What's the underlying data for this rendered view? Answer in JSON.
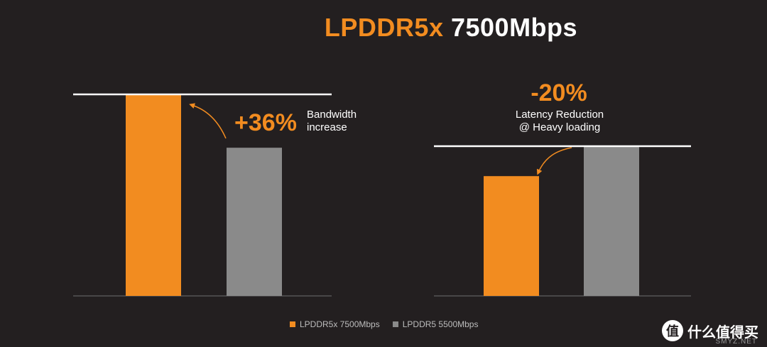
{
  "title": {
    "part1": "LPDDR5x",
    "part2": "7500Mbps"
  },
  "colors": {
    "orange": "#f28c20",
    "gray": "#8a8a8a",
    "line": "#ffffff",
    "axis": "#555555"
  },
  "chart_data": [
    {
      "type": "bar",
      "categories": [
        "LPDDR5x 7500Mbps",
        "LPDDR5 5500Mbps"
      ],
      "values": [
        136,
        100
      ],
      "ylim": [
        0,
        136
      ],
      "annotation": {
        "value": "+36%",
        "label_line1": "Bandwidth",
        "label_line2": "increase"
      }
    },
    {
      "type": "bar",
      "categories": [
        "LPDDR5x 7500Mbps",
        "LPDDR5 5500Mbps"
      ],
      "values": [
        80,
        100
      ],
      "ylim": [
        0,
        100
      ],
      "annotation": {
        "value": "-20%",
        "label_line1": "Latency Reduction",
        "label_line2": "@ Heavy loading"
      }
    }
  ],
  "legend": [
    {
      "label": "LPDDR5x 7500Mbps",
      "color": "#f28c20"
    },
    {
      "label": "LPDDR5 5500Mbps",
      "color": "#8a8a8a"
    }
  ],
  "watermark": {
    "icon": "值",
    "text": "什么值得买",
    "sub": "SMYZ.NET"
  }
}
